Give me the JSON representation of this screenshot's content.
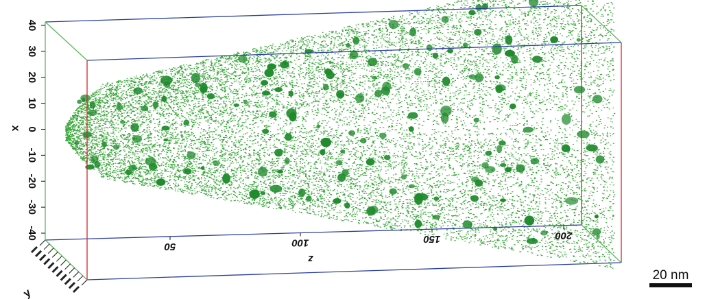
{
  "axes": {
    "x_axis_label": "x",
    "z_axis_label": "z",
    "y_axis_label": "y",
    "x_ticks": [
      "40",
      "30",
      "20",
      "10",
      "0",
      "-10",
      "-20",
      "-30",
      "-40"
    ],
    "z_ticks": [
      "50",
      "100",
      "150",
      "200"
    ]
  },
  "scale_bar": {
    "label": "20 nm"
  },
  "colors": {
    "atoms": "#3aa63a",
    "precipitates": "#1f8a2c",
    "box_red": "#d9232a",
    "box_blue": "#2b3f9e",
    "box_green": "#5cb85c"
  }
}
